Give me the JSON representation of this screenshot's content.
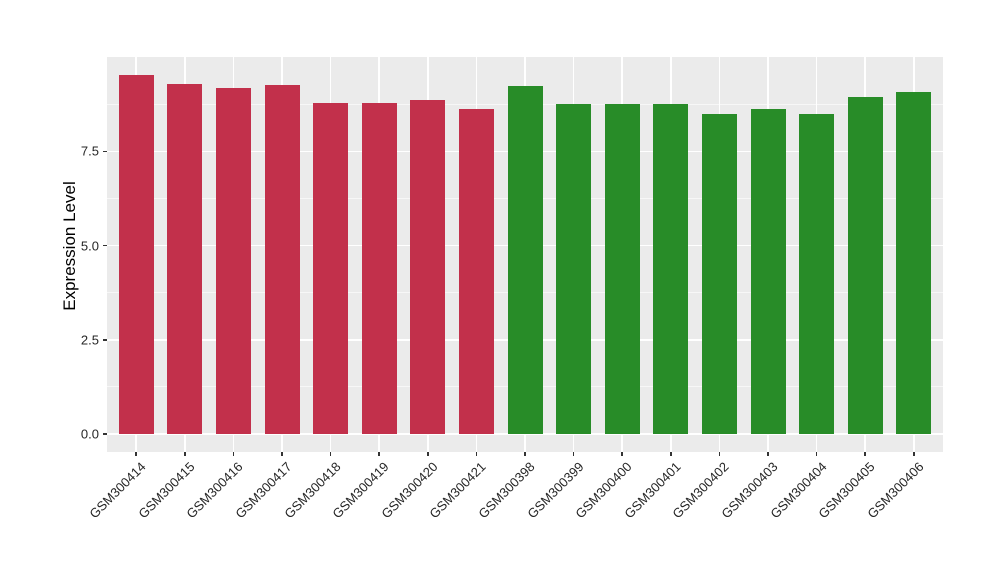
{
  "colors": {
    "figure_background": "#FFFFFF",
    "panel_background": "#EBEBEB",
    "grid": "#FFFFFF",
    "red_group": "#C2304B",
    "green_group": "#288C28",
    "axis_text": "#262626",
    "axis_title": "#000000",
    "tick_marks": "#333333"
  },
  "chart_data": {
    "type": "bar",
    "title": "",
    "xlabel": "",
    "ylabel": "Expression Level",
    "categories": [
      "GSM300414",
      "GSM300415",
      "GSM300416",
      "GSM300417",
      "GSM300418",
      "GSM300419",
      "GSM300420",
      "GSM300421",
      "GSM300398",
      "GSM300399",
      "GSM300400",
      "GSM300401",
      "GSM300402",
      "GSM300403",
      "GSM300404",
      "GSM300405",
      "GSM300406"
    ],
    "values": [
      9.53,
      9.28,
      9.19,
      9.27,
      8.8,
      8.8,
      8.88,
      8.62,
      9.24,
      8.75,
      8.75,
      8.75,
      8.49,
      8.64,
      8.49,
      8.95,
      9.08
    ],
    "bar_colors": [
      "#C2304B",
      "#C2304B",
      "#C2304B",
      "#C2304B",
      "#C2304B",
      "#C2304B",
      "#C2304B",
      "#C2304B",
      "#288C28",
      "#288C28",
      "#288C28",
      "#288C28",
      "#288C28",
      "#288C28",
      "#288C28",
      "#288C28",
      "#288C28"
    ],
    "ylim": [
      0,
      10
    ],
    "yticks": [
      0,
      2.5,
      5,
      7.5
    ],
    "ytick_labels": [
      "0.0",
      "2.5",
      "5.0",
      "7.5"
    ],
    "yticks_minor": [
      1.25,
      3.75,
      6.25,
      8.75
    ],
    "grid": "on",
    "legend": "none",
    "x_tick_label_rotation_deg": 45
  }
}
